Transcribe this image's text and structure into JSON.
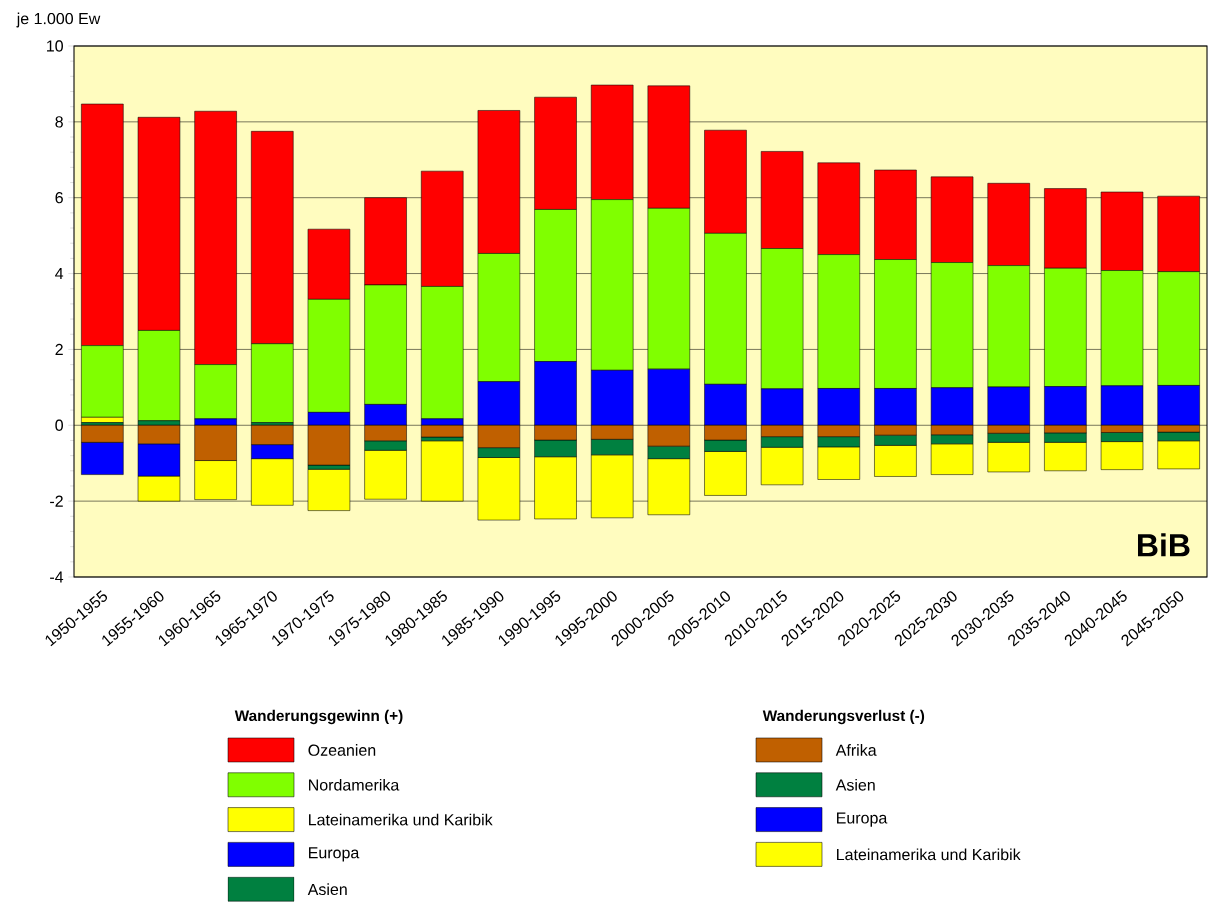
{
  "chart_data": {
    "type": "bar",
    "stacked": true,
    "ylabel": "je 1.000 Ew",
    "categories": [
      "1950-1955",
      "1955-1960",
      "1960-1965",
      "1965-1970",
      "1970-1975",
      "1975-1980",
      "1980-1985",
      "1985-1990",
      "1990-1995",
      "1995-2000",
      "2000-2005",
      "2005-2010",
      "2010-2015",
      "2015-2020",
      "2020-2025",
      "2025-2030",
      "2030-2035",
      "2035-2040",
      "2040-2045",
      "2045-2050"
    ],
    "series": [
      {
        "name": "Asien",
        "color": "#008040",
        "values": [
          0.07,
          0.12,
          0,
          0.07,
          0,
          0,
          0,
          0,
          0,
          0,
          0,
          0,
          0,
          0,
          0,
          0,
          0,
          0,
          0,
          0
        ]
      },
      {
        "name": "Europa",
        "color": "#0000ff",
        "values": [
          0,
          0,
          0.17,
          0,
          0.34,
          0.55,
          0.17,
          1.15,
          1.68,
          1.45,
          1.48,
          1.08,
          0.96,
          0.97,
          0.97,
          0.99,
          1.01,
          1.02,
          1.04,
          1.05
        ]
      },
      {
        "name": "Lateinamerika und Karibik",
        "color": "#ffff00",
        "values": [
          0.14,
          0,
          0,
          0,
          0,
          0,
          0,
          0,
          0,
          0,
          0,
          0,
          0,
          0,
          0,
          0,
          0,
          0,
          0,
          0
        ]
      },
      {
        "name": "Nordamerika",
        "color": "#80ff00",
        "values": [
          1.89,
          2.38,
          1.43,
          2.08,
          2.98,
          3.15,
          3.49,
          3.38,
          4.01,
          4.5,
          4.24,
          3.98,
          3.7,
          3.53,
          3.4,
          3.3,
          3.2,
          3.12,
          3.04,
          3.0
        ]
      },
      {
        "name": "Ozeanien",
        "color": "#ff0000",
        "values": [
          6.37,
          5.62,
          6.68,
          5.6,
          1.85,
          2.3,
          3.04,
          3.77,
          2.96,
          3.02,
          3.23,
          2.72,
          2.56,
          2.42,
          2.36,
          2.26,
          2.17,
          2.1,
          2.07,
          1.99
        ]
      },
      {
        "name": "Afrika",
        "color": "#c06000",
        "values": [
          -0.45,
          -0.49,
          -0.93,
          -0.51,
          -1.05,
          -0.41,
          -0.31,
          -0.59,
          -0.39,
          -0.37,
          -0.55,
          -0.39,
          -0.3,
          -0.3,
          -0.26,
          -0.25,
          -0.21,
          -0.2,
          -0.19,
          -0.18
        ]
      },
      {
        "name": "Asien",
        "color": "#008040",
        "values": [
          0,
          0,
          0,
          0,
          -0.11,
          -0.25,
          -0.1,
          -0.26,
          -0.44,
          -0.41,
          -0.33,
          -0.3,
          -0.28,
          -0.27,
          -0.27,
          -0.24,
          -0.24,
          -0.25,
          -0.24,
          -0.23
        ]
      },
      {
        "name": "Europa",
        "color": "#0000ff",
        "values": [
          -0.85,
          -0.85,
          0,
          -0.37,
          0,
          0,
          0,
          0,
          0,
          0,
          0,
          0,
          0,
          0,
          0,
          0,
          0,
          0,
          0,
          0
        ]
      },
      {
        "name": "Lateinamerika und Karibik",
        "color": "#ffff00",
        "values": [
          0,
          -0.66,
          -1.03,
          -1.23,
          -1.09,
          -1.29,
          -1.59,
          -1.65,
          -1.64,
          -1.66,
          -1.48,
          -1.16,
          -0.99,
          -0.86,
          -0.82,
          -0.81,
          -0.78,
          -0.75,
          -0.74,
          -0.74
        ]
      }
    ],
    "ylim": [
      -4,
      10
    ],
    "yticks": [
      -4,
      -2,
      0,
      2,
      4,
      6,
      8,
      10
    ],
    "grid": "y",
    "legend": "bottom",
    "annotations": [
      "Wanderungsgewinn (+)",
      "Wanderungsverlust (-)",
      "BiB"
    ]
  }
}
